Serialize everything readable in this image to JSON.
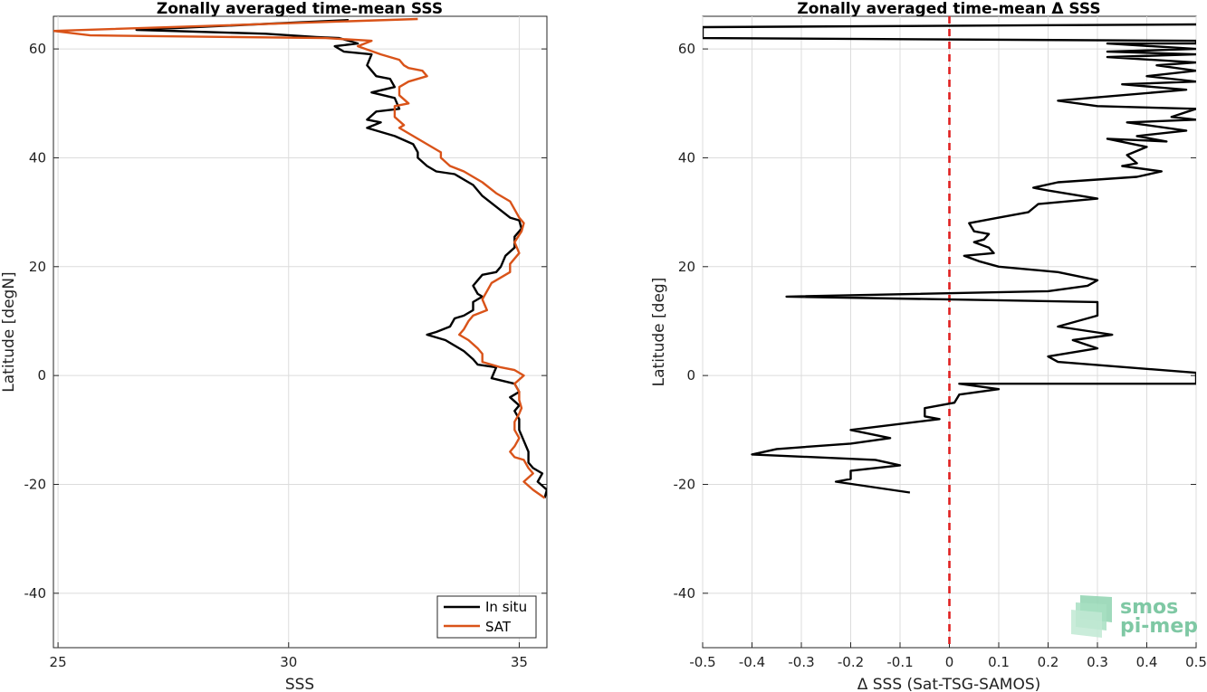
{
  "chart_data": [
    {
      "type": "line",
      "title": "Zonally averaged time-mean SSS",
      "xlabel": "SSS",
      "ylabel": "Latitude [degN]",
      "xlim": [
        24.9,
        35.6
      ],
      "ylim": [
        -50,
        66
      ],
      "xticks": [
        25,
        30,
        35
      ],
      "yticks": [
        -40,
        -20,
        0,
        20,
        40,
        60
      ],
      "grid": true,
      "legend_position": "bottom-right",
      "series": [
        {
          "name": "In situ",
          "color": "#000000",
          "points": [
            [
              31.3,
              65.3
            ],
            [
              26.7,
              63.5
            ],
            [
              29.5,
              62.8
            ],
            [
              30.6,
              62.2
            ],
            [
              31.1,
              62.0
            ],
            [
              31.5,
              61.0
            ],
            [
              31.0,
              60.5
            ],
            [
              31.2,
              59.5
            ],
            [
              31.8,
              59.0
            ],
            [
              31.7,
              57.0
            ],
            [
              31.9,
              55.0
            ],
            [
              32.2,
              54.5
            ],
            [
              32.3,
              53.0
            ],
            [
              31.8,
              52.0
            ],
            [
              32.3,
              51.0
            ],
            [
              32.4,
              49.0
            ],
            [
              31.9,
              48.5
            ],
            [
              31.7,
              47.0
            ],
            [
              32.0,
              46.5
            ],
            [
              31.7,
              45.5
            ],
            [
              32.3,
              44.0
            ],
            [
              32.7,
              42.5
            ],
            [
              32.8,
              41.0
            ],
            [
              32.8,
              40.0
            ],
            [
              33.0,
              38.5
            ],
            [
              33.2,
              37.5
            ],
            [
              33.6,
              37.0
            ],
            [
              34.0,
              35.0
            ],
            [
              34.2,
              33.0
            ],
            [
              34.5,
              31.0
            ],
            [
              34.8,
              29.0
            ],
            [
              35.0,
              28.5
            ],
            [
              35.05,
              27.0
            ],
            [
              34.9,
              25.5
            ],
            [
              34.9,
              23.5
            ],
            [
              34.7,
              22.0
            ],
            [
              34.6,
              20.0
            ],
            [
              34.5,
              19.0
            ],
            [
              34.2,
              18.5
            ],
            [
              34.1,
              17.5
            ],
            [
              34.0,
              16.5
            ],
            [
              34.1,
              15.0
            ],
            [
              34.2,
              14.5
            ],
            [
              34.0,
              13.5
            ],
            [
              34.0,
              12.0
            ],
            [
              33.8,
              11.0
            ],
            [
              33.6,
              10.5
            ],
            [
              33.5,
              9.0
            ],
            [
              33.2,
              8.0
            ],
            [
              33.0,
              7.5
            ],
            [
              33.4,
              6.5
            ],
            [
              33.8,
              4.5
            ],
            [
              34.0,
              3.0
            ],
            [
              34.1,
              2.0
            ],
            [
              34.5,
              1.5
            ],
            [
              34.4,
              -0.5
            ],
            [
              34.9,
              -1.5
            ],
            [
              35.0,
              -3.0
            ],
            [
              34.8,
              -4.0
            ],
            [
              35.0,
              -5.5
            ],
            [
              34.9,
              -6.5
            ],
            [
              35.0,
              -8.0
            ],
            [
              35.0,
              -10.0
            ],
            [
              35.1,
              -12.0
            ],
            [
              35.2,
              -14.0
            ],
            [
              35.2,
              -16.0
            ],
            [
              35.3,
              -17.0
            ],
            [
              35.5,
              -18.0
            ],
            [
              35.4,
              -19.5
            ],
            [
              35.6,
              -21.0
            ],
            [
              35.55,
              -22.5
            ]
          ]
        },
        {
          "name": "SAT",
          "color": "#d95319",
          "points": [
            [
              32.8,
              65.5
            ],
            [
              24.9,
              63.3
            ],
            [
              25.7,
              62.5
            ],
            [
              30.8,
              62.0
            ],
            [
              31.8,
              61.5
            ],
            [
              31.5,
              60.5
            ],
            [
              32.0,
              59.0
            ],
            [
              32.4,
              58.0
            ],
            [
              32.5,
              57.0
            ],
            [
              32.6,
              56.5
            ],
            [
              32.9,
              56.0
            ],
            [
              33.0,
              55.0
            ],
            [
              32.6,
              54.0
            ],
            [
              32.4,
              53.0
            ],
            [
              32.4,
              51.5
            ],
            [
              32.6,
              50.0
            ],
            [
              32.3,
              49.5
            ],
            [
              32.3,
              47.5
            ],
            [
              32.5,
              46.0
            ],
            [
              32.4,
              45.5
            ],
            [
              32.6,
              44.5
            ],
            [
              32.8,
              43.5
            ],
            [
              33.1,
              42.0
            ],
            [
              33.3,
              41.0
            ],
            [
              33.3,
              40.0
            ],
            [
              33.5,
              38.5
            ],
            [
              33.8,
              37.5
            ],
            [
              34.2,
              35.5
            ],
            [
              34.5,
              33.5
            ],
            [
              34.8,
              32.0
            ],
            [
              35.0,
              29.0
            ],
            [
              35.1,
              28.0
            ],
            [
              35.05,
              26.5
            ],
            [
              34.9,
              24.5
            ],
            [
              35.0,
              22.5
            ],
            [
              34.8,
              20.5
            ],
            [
              34.8,
              19.0
            ],
            [
              34.4,
              17.0
            ],
            [
              34.3,
              15.5
            ],
            [
              34.2,
              14.0
            ],
            [
              34.3,
              12.0
            ],
            [
              34.0,
              11.0
            ],
            [
              33.9,
              10.0
            ],
            [
              33.8,
              8.5
            ],
            [
              33.7,
              7.5
            ],
            [
              33.9,
              6.5
            ],
            [
              34.1,
              5.0
            ],
            [
              34.2,
              4.0
            ],
            [
              34.2,
              2.5
            ],
            [
              34.6,
              1.5
            ],
            [
              34.9,
              1.0
            ],
            [
              35.1,
              0.0
            ],
            [
              34.9,
              -1.5
            ],
            [
              35.0,
              -3.0
            ],
            [
              35.0,
              -4.5
            ],
            [
              35.05,
              -6.0
            ],
            [
              35.0,
              -7.0
            ],
            [
              34.9,
              -8.5
            ],
            [
              34.9,
              -10.0
            ],
            [
              35.0,
              -11.5
            ],
            [
              34.9,
              -13.0
            ],
            [
              34.8,
              -14.0
            ],
            [
              34.9,
              -15.0
            ],
            [
              35.1,
              -15.5
            ],
            [
              35.2,
              -17.0
            ],
            [
              35.3,
              -18.0
            ],
            [
              35.1,
              -19.5
            ],
            [
              35.3,
              -21.0
            ],
            [
              35.55,
              -22.5
            ]
          ]
        }
      ]
    },
    {
      "type": "line",
      "title": "Zonally averaged time-mean Δ SSS",
      "xlabel": "Δ SSS (Sat-TSG-SAMOS)",
      "ylabel": "Latitude [deg]",
      "xlim": [
        -0.5,
        0.5
      ],
      "ylim": [
        -50,
        66
      ],
      "xticks": [
        -0.5,
        -0.4,
        -0.3,
        -0.2,
        -0.1,
        0,
        0.1,
        0.2,
        0.3,
        0.4,
        0.5
      ],
      "yticks": [
        -40,
        -20,
        0,
        20,
        40,
        60
      ],
      "grid": true,
      "reference_line": {
        "x": 0,
        "color": "#e02020",
        "style": "dashed"
      },
      "series": [
        {
          "name": "",
          "color": "#000000",
          "points": [
            [
              0.5,
              64.5
            ],
            [
              -0.5,
              64.0
            ],
            [
              -0.5,
              62.0
            ],
            [
              0.5,
              61.5
            ],
            [
              0.5,
              61.0
            ],
            [
              0.32,
              61.0
            ],
            [
              0.5,
              60.0
            ],
            [
              0.32,
              59.5
            ],
            [
              0.5,
              59.0
            ],
            [
              0.32,
              58.5
            ],
            [
              0.5,
              57.5
            ],
            [
              0.42,
              57.0
            ],
            [
              0.5,
              56.0
            ],
            [
              0.4,
              55.0
            ],
            [
              0.5,
              54.0
            ],
            [
              0.35,
              53.5
            ],
            [
              0.48,
              52.5
            ],
            [
              0.22,
              50.5
            ],
            [
              0.3,
              49.5
            ],
            [
              0.5,
              49.0
            ],
            [
              0.45,
              47.5
            ],
            [
              0.5,
              47.0
            ],
            [
              0.36,
              46.5
            ],
            [
              0.48,
              45.0
            ],
            [
              0.38,
              44.0
            ],
            [
              0.44,
              43.0
            ],
            [
              0.32,
              43.5
            ],
            [
              0.4,
              42.0
            ],
            [
              0.36,
              40.5
            ],
            [
              0.38,
              39.0
            ],
            [
              0.35,
              38.5
            ],
            [
              0.43,
              37.5
            ],
            [
              0.38,
              36.5
            ],
            [
              0.22,
              35.5
            ],
            [
              0.17,
              34.5
            ],
            [
              0.2,
              34.0
            ],
            [
              0.3,
              32.5
            ],
            [
              0.18,
              31.5
            ],
            [
              0.16,
              30.0
            ],
            [
              0.1,
              29.0
            ],
            [
              0.04,
              28.0
            ],
            [
              0.05,
              26.5
            ],
            [
              0.08,
              26.0
            ],
            [
              0.07,
              25.0
            ],
            [
              0.05,
              24.5
            ],
            [
              0.08,
              23.5
            ],
            [
              0.09,
              22.5
            ],
            [
              0.03,
              22.0
            ],
            [
              0.06,
              21.0
            ],
            [
              0.1,
              20.0
            ],
            [
              0.22,
              19.0
            ],
            [
              0.3,
              17.5
            ],
            [
              0.28,
              16.5
            ],
            [
              0.2,
              15.5
            ],
            [
              -0.33,
              14.5
            ],
            [
              0.3,
              13.5
            ],
            [
              0.3,
              11.0
            ],
            [
              0.22,
              9.0
            ],
            [
              0.33,
              7.5
            ],
            [
              0.25,
              6.5
            ],
            [
              0.3,
              5.0
            ],
            [
              0.2,
              3.5
            ],
            [
              0.22,
              2.5
            ],
            [
              0.5,
              0.5
            ],
            [
              0.5,
              -1.5
            ],
            [
              0.02,
              -1.5
            ],
            [
              0.1,
              -2.5
            ],
            [
              0.02,
              -3.5
            ],
            [
              0.01,
              -5.0
            ],
            [
              -0.05,
              -6.0
            ],
            [
              -0.05,
              -7.5
            ],
            [
              -0.02,
              -8.0
            ],
            [
              -0.2,
              -10.0
            ],
            [
              -0.12,
              -11.5
            ],
            [
              -0.2,
              -12.5
            ],
            [
              -0.35,
              -13.5
            ],
            [
              -0.4,
              -14.5
            ],
            [
              -0.15,
              -15.5
            ],
            [
              -0.1,
              -16.5
            ],
            [
              -0.2,
              -17.5
            ],
            [
              -0.2,
              -18.5
            ],
            [
              -0.2,
              -19.0
            ],
            [
              -0.23,
              -19.5
            ],
            [
              -0.08,
              -21.5
            ]
          ]
        }
      ]
    }
  ]
}
